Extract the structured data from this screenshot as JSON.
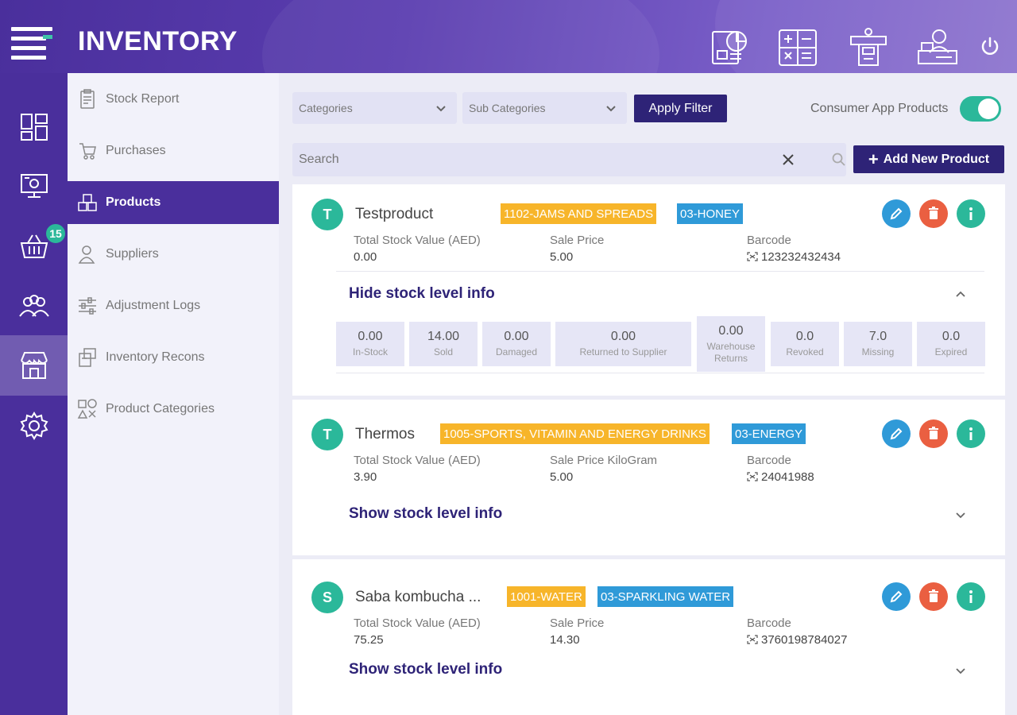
{
  "app": {
    "title": "INVENTORY"
  },
  "header_icons": [
    "reports-icon",
    "calculator-icon",
    "cashier-icon",
    "user-desk-icon",
    "power-icon"
  ],
  "rail": {
    "cart_badge": "15"
  },
  "subnav": {
    "items": [
      {
        "label": "Stock Report",
        "icon": "clipboard-icon"
      },
      {
        "label": "Purchases",
        "icon": "cart-hand-icon"
      },
      {
        "label": "Products",
        "icon": "boxes-icon"
      },
      {
        "label": "Suppliers",
        "icon": "person-icon"
      },
      {
        "label": "Adjustment Logs",
        "icon": "sliders-icon"
      },
      {
        "label": "Inventory Recons",
        "icon": "recons-icon"
      },
      {
        "label": "Product Categories",
        "icon": "categories-icon"
      }
    ]
  },
  "filters": {
    "categories": "Categories",
    "sub_categories": "Sub Categories",
    "apply": "Apply Filter",
    "consumer_label": "Consumer App Products",
    "consumer_on": true
  },
  "search": {
    "placeholder": "Search"
  },
  "add_button": "Add New Product",
  "labels": {
    "total_stock_value": "Total Stock Value (AED)",
    "sale_price": "Sale Price",
    "sale_price_kg": "Sale Price KiloGram",
    "barcode": "Barcode",
    "hide_info": "Hide stock level info",
    "show_info": "Show stock level info"
  },
  "products": [
    {
      "initial": "T",
      "name": "Testproduct",
      "category": "1102-JAMS AND SPREADS",
      "sub_category": "03-HONEY",
      "total_stock_value": "0.00",
      "sale_price": "5.00",
      "barcode": "123232432434",
      "stats": [
        {
          "value": "0.00",
          "label": "In-Stock"
        },
        {
          "value": "14.00",
          "label": "Sold"
        },
        {
          "value": "0.00",
          "label": "Damaged"
        },
        {
          "value": "0.00",
          "label": "Returned to Supplier"
        },
        {
          "value": "0.00",
          "label": "Warehouse Returns"
        },
        {
          "value": "0.0",
          "label": "Revoked"
        },
        {
          "value": "7.0",
          "label": "Missing"
        },
        {
          "value": "0.0",
          "label": "Expired"
        }
      ]
    },
    {
      "initial": "T",
      "name": "Thermos",
      "category": "1005-SPORTS, VITAMIN AND ENERGY DRINKS",
      "sub_category": "03-ENERGY",
      "total_stock_value": "3.90",
      "sale_price": "5.00",
      "barcode": "24041988"
    },
    {
      "initial": "S",
      "name": "Saba kombucha ...",
      "category": "1001-WATER",
      "sub_category": "03-SPARKLING WATER",
      "total_stock_value": "75.25",
      "sale_price": "14.30",
      "barcode": "3760198784027"
    }
  ],
  "colors": {
    "primary": "#4a2f9c",
    "button": "#2e2377",
    "accent_green": "#2bb89a",
    "tag_category": "#f7b52a",
    "tag_subcategory": "#2f9ad8",
    "delete": "#ea5f41"
  }
}
